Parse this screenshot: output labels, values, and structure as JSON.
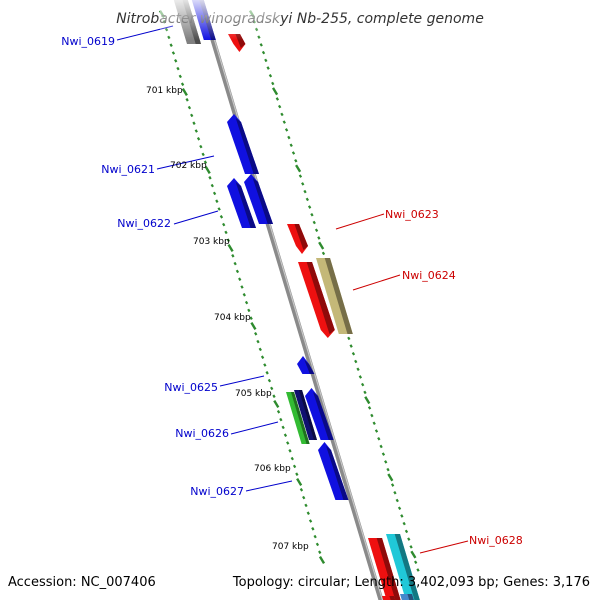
{
  "title": "Nitrobacter winogradskyi Nb-255, complete genome",
  "accession_text": "Accession: NC_007406",
  "summary_text": "Topology: circular; Length: 3,402,093 bp; Genes: 3,176",
  "colors": {
    "backbone": "#8a8a8a",
    "tick_minus": "#2e8b2e",
    "tick_plus": "#2e8b2e",
    "label_minus": "#0000cc",
    "label_plus": "#cc0000"
  },
  "kbp_marks": [
    "701 kbp",
    "702 kbp",
    "703 kbp",
    "704 kbp",
    "705 kbp",
    "706 kbp",
    "707 kbp"
  ],
  "gene_labels": [
    {
      "id": "Nwi_0619",
      "strand": "minus",
      "color": "#0000cc"
    },
    {
      "id": "Nwi_0621",
      "strand": "minus",
      "color": "#0000cc"
    },
    {
      "id": "Nwi_0622",
      "strand": "minus",
      "color": "#0000cc"
    },
    {
      "id": "Nwi_0623",
      "strand": "plus",
      "color": "#cc0000"
    },
    {
      "id": "Nwi_0624",
      "strand": "plus",
      "color": "#cc0000"
    },
    {
      "id": "Nwi_0625",
      "strand": "minus",
      "color": "#0000cc"
    },
    {
      "id": "Nwi_0626",
      "strand": "minus",
      "color": "#0000cc"
    },
    {
      "id": "Nwi_0627",
      "strand": "minus",
      "color": "#0000cc"
    },
    {
      "id": "Nwi_0628",
      "strand": "plus",
      "color": "#cc0000"
    }
  ],
  "features": [
    {
      "name": "feature-grey-top",
      "color": "#808080"
    },
    {
      "name": "feature-blue-top",
      "color": "#1010e0"
    },
    {
      "name": "feature-red-top",
      "color": "#ee1010"
    },
    {
      "name": "gene-nwi-0621",
      "color": "#1010e0"
    },
    {
      "name": "gene-nwi-0622-a",
      "color": "#1010e0"
    },
    {
      "name": "gene-nwi-0622-b",
      "color": "#1010e0"
    },
    {
      "name": "gene-nwi-0623",
      "color": "#ee1010"
    },
    {
      "name": "gene-nwi-0624-red",
      "color": "#ee1010"
    },
    {
      "name": "gene-nwi-0624-olive",
      "color": "#c4b878"
    },
    {
      "name": "gene-nwi-0625",
      "color": "#1010e0"
    },
    {
      "name": "gene-nwi-0626-green",
      "color": "#33bb33"
    },
    {
      "name": "gene-nwi-0626-navy",
      "color": "#101070"
    },
    {
      "name": "gene-nwi-0626-blue",
      "color": "#1010e0"
    },
    {
      "name": "gene-nwi-0627",
      "color": "#1010e0"
    },
    {
      "name": "gene-nwi-0628-red",
      "color": "#ee1010"
    },
    {
      "name": "gene-nwi-0628-cyan",
      "color": "#20c8d8"
    },
    {
      "name": "feature-bottom-red",
      "color": "#ee1010"
    },
    {
      "name": "feature-bottom-blue",
      "color": "#4488cc"
    }
  ]
}
